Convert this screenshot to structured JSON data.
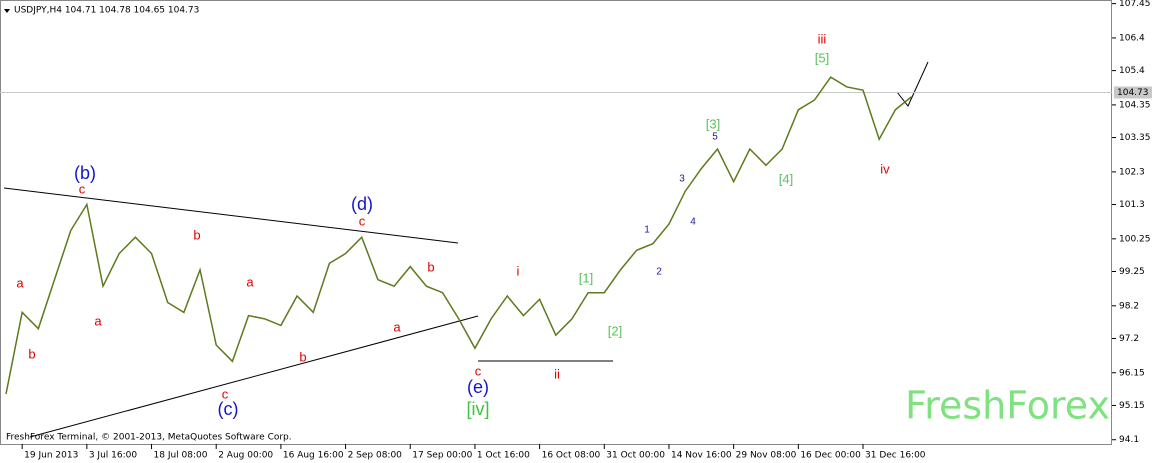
{
  "chart_data": {
    "type": "line",
    "title": "USDJPY,H4  104.71 104.78 104.65 104.73",
    "footer": "FreshForex Terminal, © 2001-2013, MetaQuotes Software Corp.",
    "watermark": "FreshForex",
    "categories": [
      null,
      "19 Jun 2013",
      null,
      null,
      null,
      "3 Jul 16:00",
      null,
      null,
      null,
      "18 Jul 08:00",
      null,
      null,
      null,
      "2 Aug 00:00",
      null,
      null,
      null,
      "16 Aug 16:00",
      null,
      null,
      null,
      "2 Sep 08:00",
      null,
      null,
      null,
      "17 Sep 00:00",
      null,
      null,
      null,
      "1 Oct 16:00",
      null,
      null,
      null,
      "16 Oct 08:00",
      null,
      null,
      null,
      "31 Oct 00:00",
      null,
      null,
      null,
      "14 Nov 16:00",
      null,
      null,
      null,
      "29 Nov 08:00",
      null,
      null,
      null,
      "16 Dec 00:00",
      null,
      null,
      null,
      "31 Dec 16:00",
      null,
      null,
      null
    ],
    "series": [
      {
        "name": "USDJPY,H4",
        "color": "#5d7a1c",
        "values": [
          95.5,
          98.0,
          97.5,
          99.0,
          100.5,
          101.3,
          98.8,
          99.8,
          100.3,
          99.8,
          98.3,
          98.0,
          99.3,
          97.0,
          96.5,
          97.9,
          97.8,
          97.6,
          98.5,
          98.0,
          99.5,
          99.8,
          100.3,
          99.0,
          98.8,
          99.4,
          98.8,
          98.6,
          97.8,
          96.9,
          97.8,
          98.5,
          97.9,
          98.4,
          97.3,
          97.8,
          98.6,
          98.6,
          99.3,
          99.9,
          100.1,
          100.7,
          101.7,
          102.4,
          103.0,
          102.0,
          103.0,
          102.5,
          103.0,
          104.2,
          104.5,
          105.2,
          104.9,
          104.8,
          103.3,
          104.2,
          104.6
        ]
      }
    ],
    "ylim": [
      94.0,
      107.5
    ],
    "yticks": [
      107.45,
      106.4,
      105.4,
      104.35,
      103.35,
      102.3,
      101.3,
      100.25,
      99.25,
      98.2,
      97.2,
      96.15,
      95.15,
      94.1
    ],
    "last_price": 104.73,
    "annotations": [
      {
        "text": "a",
        "color": "#e00000"
      },
      {
        "text": "b",
        "color": "#e00000"
      },
      {
        "text": "(b)",
        "color": "#1414d0"
      },
      {
        "text": "c",
        "color": "#e00000"
      },
      {
        "text": "a",
        "color": "#e00000"
      },
      {
        "text": "b",
        "color": "#e00000"
      },
      {
        "text": "a",
        "color": "#e00000"
      },
      {
        "text": "c",
        "color": "#e00000"
      },
      {
        "text": "(c)",
        "color": "#1414d0"
      },
      {
        "text": "b",
        "color": "#e00000"
      },
      {
        "text": "(d)",
        "color": "#1414d0"
      },
      {
        "text": "c",
        "color": "#e00000"
      },
      {
        "text": "a",
        "color": "#e00000"
      },
      {
        "text": "b",
        "color": "#e00000"
      },
      {
        "text": "c",
        "color": "#e00000"
      },
      {
        "text": "(e)",
        "color": "#1414d0"
      },
      {
        "text": "[iv]",
        "color": "#3cc43c"
      },
      {
        "text": "i",
        "color": "#e00000"
      },
      {
        "text": "ii",
        "color": "#e00000"
      },
      {
        "text": "[1]",
        "color": "#5cc05c"
      },
      {
        "text": "[2]",
        "color": "#5cc05c"
      },
      {
        "text": "1",
        "color": "#1a1a9a"
      },
      {
        "text": "2",
        "color": "#1a1a9a"
      },
      {
        "text": "3",
        "color": "#1a1a9a"
      },
      {
        "text": "4",
        "color": "#1a1a9a"
      },
      {
        "text": "5",
        "color": "#1a1a9a"
      },
      {
        "text": "[3]",
        "color": "#5cc05c"
      },
      {
        "text": "[4]",
        "color": "#5cc05c"
      },
      {
        "text": "iii",
        "color": "#e00000"
      },
      {
        "text": "[5]",
        "color": "#5cc05c"
      },
      {
        "text": "iv",
        "color": "#e00000"
      }
    ]
  }
}
